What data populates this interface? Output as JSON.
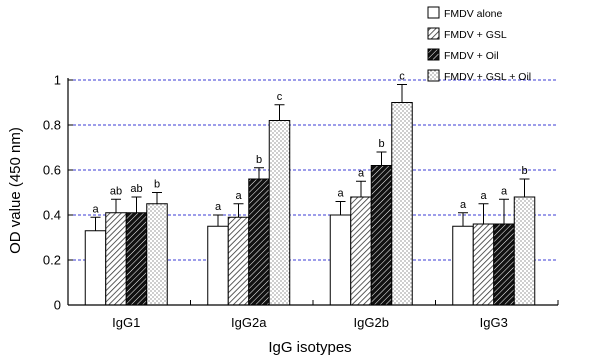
{
  "chart_data": {
    "type": "bar",
    "xlabel": "IgG isotypes",
    "ylabel": "OD value (450 nm)",
    "ylim": [
      0,
      1
    ],
    "yticks": [
      "0",
      "0.2",
      "0.4",
      "0.6",
      "0.8",
      "1"
    ],
    "ytick_values": [
      0,
      0.2,
      0.4,
      0.6,
      0.8,
      1
    ],
    "grid": true,
    "grid_color": "#3b3bd6",
    "legend_position": "top-right",
    "categories": [
      "IgG1",
      "IgG2a",
      "IgG2b",
      "IgG3"
    ],
    "series": [
      {
        "name": "FMDV alone",
        "pattern": "solid-white",
        "values": [
          0.33,
          0.35,
          0.4,
          0.35
        ],
        "errors": [
          0.06,
          0.05,
          0.06,
          0.06
        ],
        "labels": [
          "a",
          "a",
          "a",
          "a"
        ]
      },
      {
        "name": "FMDV + GSL",
        "pattern": "hatch-light",
        "values": [
          0.41,
          0.39,
          0.48,
          0.36
        ],
        "errors": [
          0.06,
          0.06,
          0.07,
          0.09
        ],
        "labels": [
          "ab",
          "a",
          "a",
          "a"
        ]
      },
      {
        "name": "FMDV + Oil",
        "pattern": "hatch-dark",
        "values": [
          0.41,
          0.56,
          0.62,
          0.36
        ],
        "errors": [
          0.07,
          0.05,
          0.06,
          0.11
        ],
        "labels": [
          "ab",
          "b",
          "b",
          "a"
        ]
      },
      {
        "name": "FMDV + GSL + Oil",
        "pattern": "dotted",
        "values": [
          0.45,
          0.82,
          0.9,
          0.48
        ],
        "errors": [
          0.05,
          0.07,
          0.08,
          0.08
        ],
        "labels": [
          "b",
          "c",
          "c",
          "b"
        ]
      }
    ]
  }
}
